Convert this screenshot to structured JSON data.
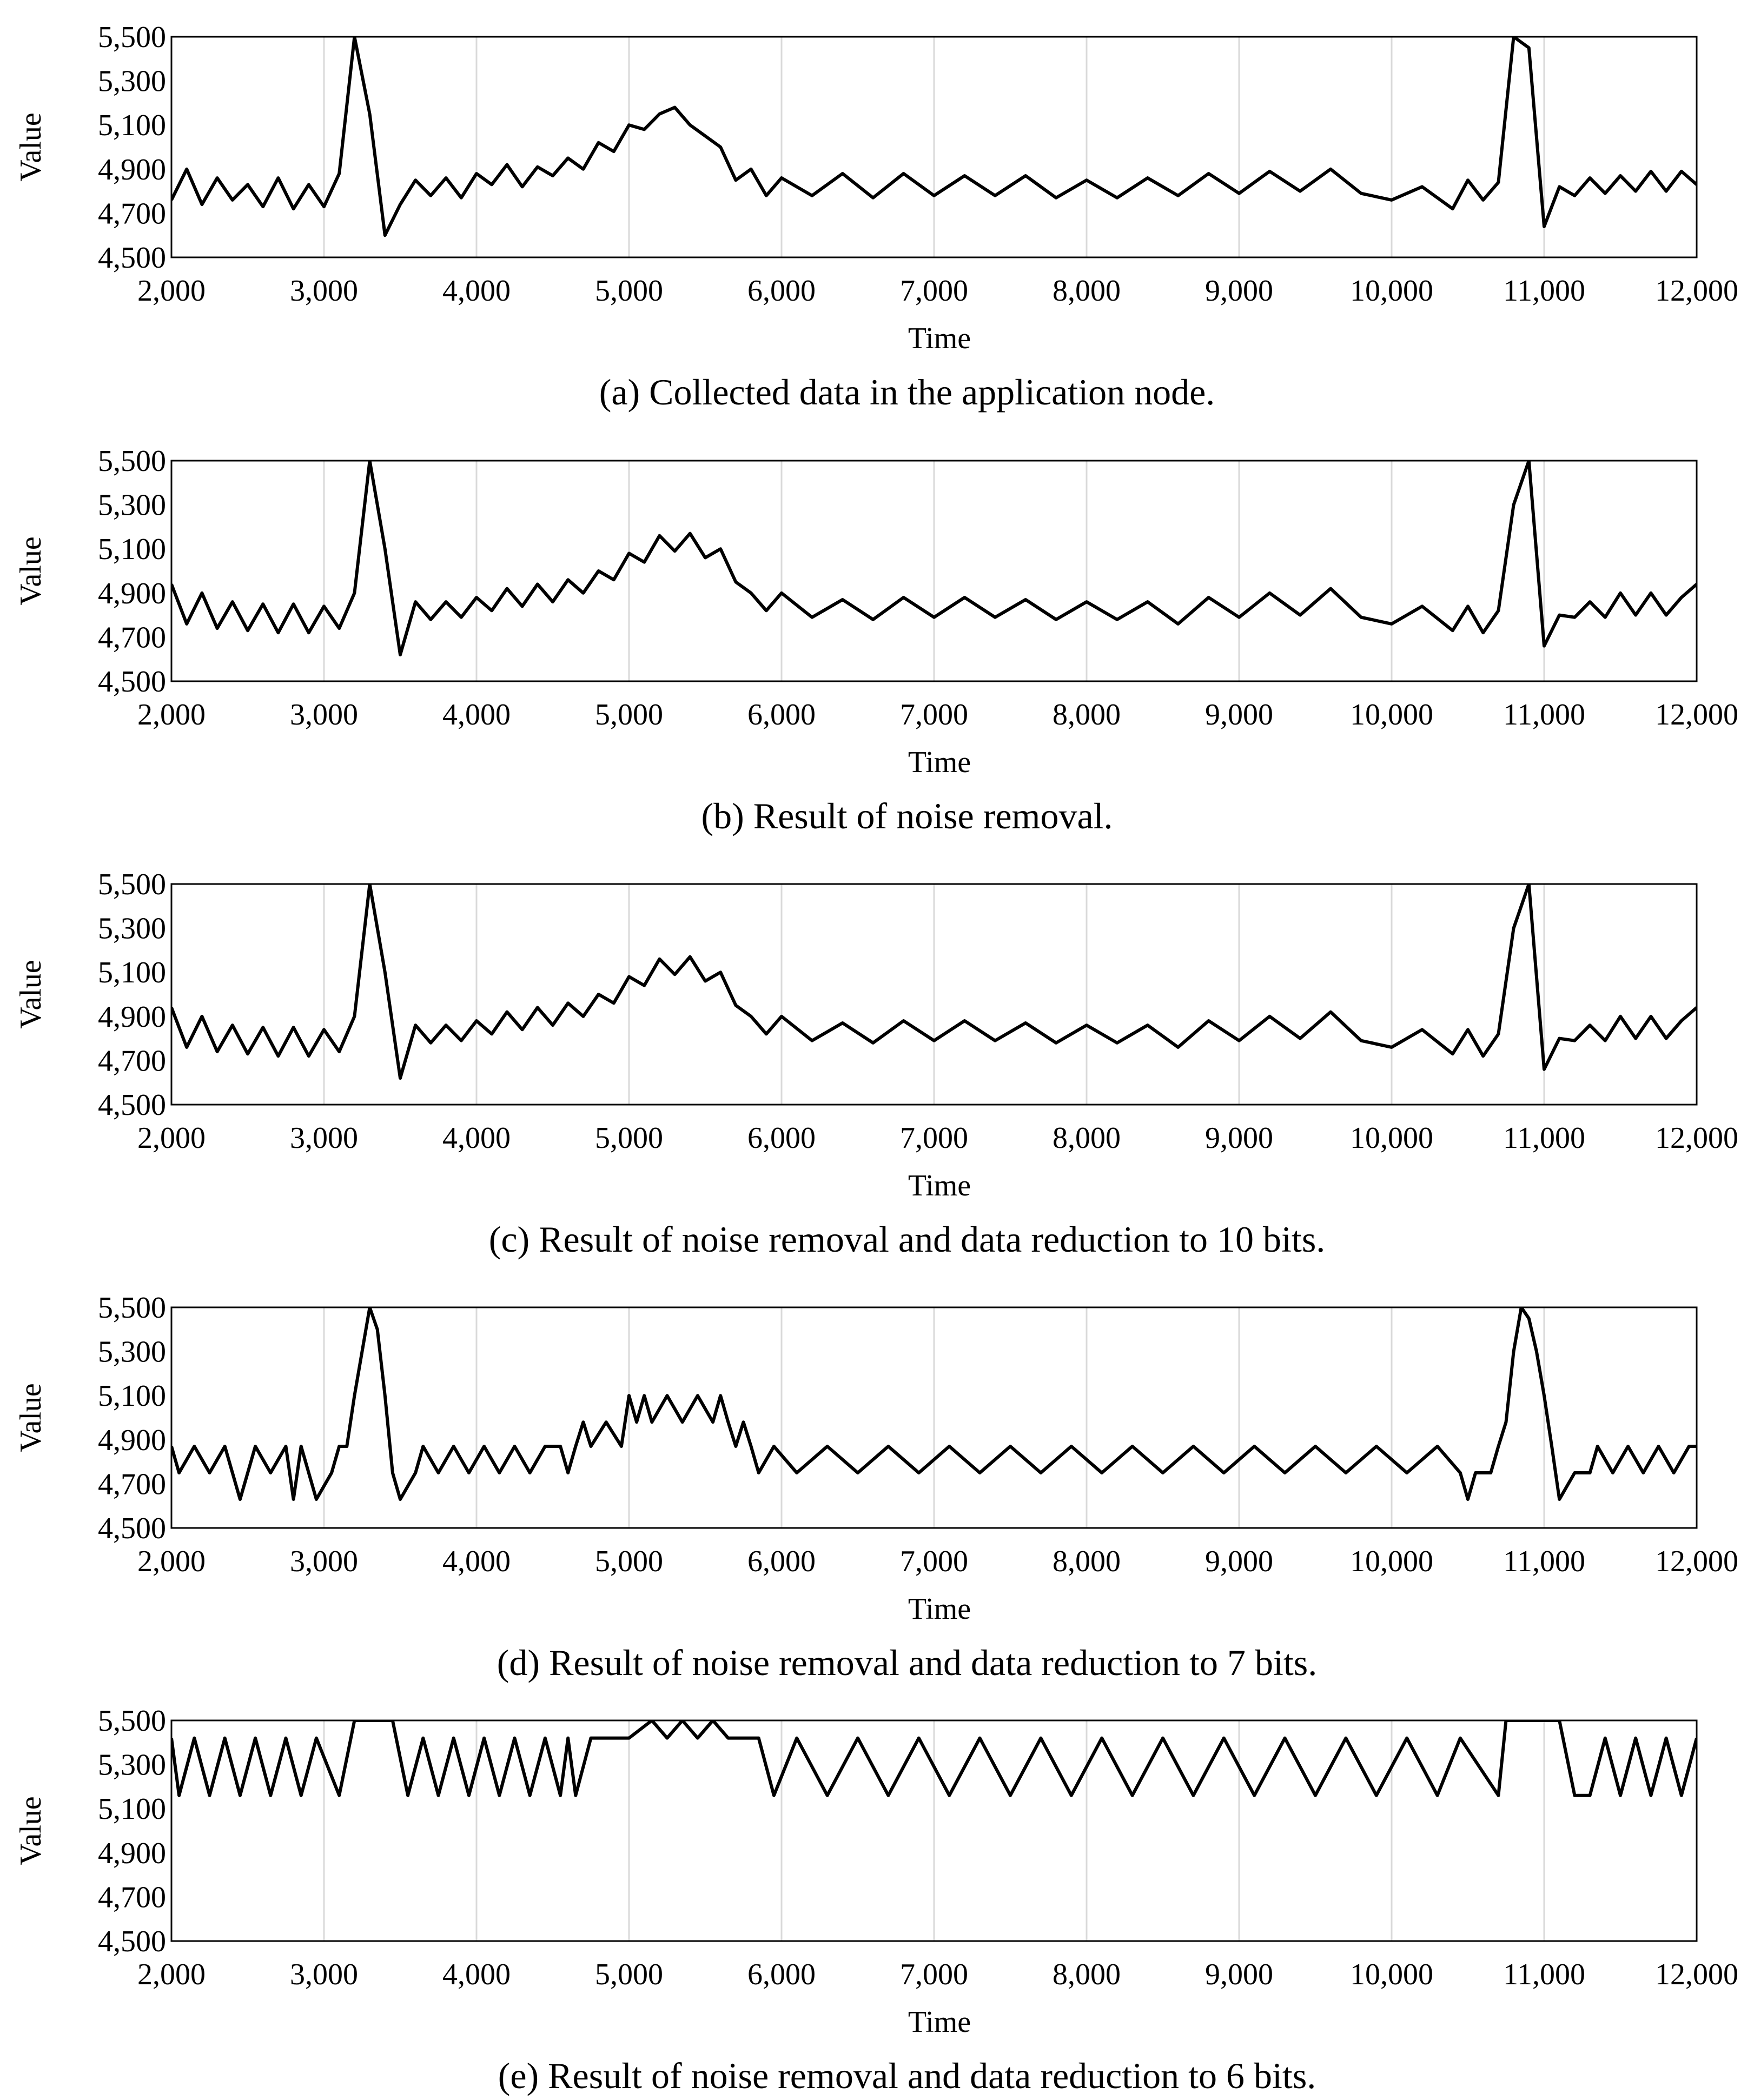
{
  "figure": {
    "x_axis_label": "Time",
    "y_axis_label": "Value"
  },
  "style": {
    "line_color": "#000000",
    "grid_color": "#d9d9d9",
    "axis_color": "#000000"
  },
  "chart_data": [
    {
      "type": "line",
      "caption": "(a) Collected data in the application node.",
      "xlabel": "Time",
      "ylabel": "Value",
      "xlim": [
        2000,
        12000
      ],
      "ylim": [
        4500,
        5500
      ],
      "xticks": [
        "2,000",
        "3,000",
        "4,000",
        "5,000",
        "6,000",
        "7,000",
        "8,000",
        "9,000",
        "10,000",
        "11,000",
        "12,000"
      ],
      "yticks": [
        "4,500",
        "4,700",
        "4,900",
        "5,100",
        "5,300",
        "5,500"
      ],
      "grid": "vertical",
      "series": [
        {
          "x": [
            2000,
            2100,
            2200,
            2300,
            2400,
            2500,
            2600,
            2700,
            2800,
            2900,
            3000,
            3100,
            3200,
            3300,
            3400,
            3500,
            3600,
            3700,
            3800,
            3900,
            4000,
            4100,
            4200,
            4300,
            4400,
            4500,
            4600,
            4700,
            4800,
            4900,
            5000,
            5100,
            5200,
            5300,
            5400,
            5500,
            5600,
            5700,
            5800,
            5900,
            6000,
            6200,
            6400,
            6600,
            6800,
            7000,
            7200,
            7400,
            7600,
            7800,
            8000,
            8200,
            8400,
            8600,
            8800,
            9000,
            9200,
            9400,
            9600,
            9800,
            10000,
            10200,
            10400,
            10500,
            10600,
            10700,
            10800,
            10900,
            11000,
            11100,
            11200,
            11300,
            11400,
            11500,
            11600,
            11700,
            11800,
            11900,
            12000
          ],
          "y": [
            4760,
            4900,
            4740,
            4860,
            4760,
            4830,
            4730,
            4860,
            4720,
            4830,
            4730,
            4880,
            5500,
            5150,
            4600,
            4740,
            4850,
            4780,
            4860,
            4770,
            4880,
            4830,
            4920,
            4820,
            4910,
            4870,
            4950,
            4900,
            5020,
            4980,
            5100,
            5080,
            5150,
            5180,
            5100,
            5050,
            5000,
            4850,
            4900,
            4780,
            4860,
            4780,
            4880,
            4770,
            4880,
            4780,
            4870,
            4780,
            4870,
            4770,
            4850,
            4770,
            4860,
            4780,
            4880,
            4790,
            4890,
            4800,
            4900,
            4790,
            4760,
            4820,
            4720,
            4850,
            4760,
            4840,
            5500,
            5450,
            4640,
            4820,
            4780,
            4860,
            4790,
            4870,
            4800,
            4890,
            4800,
            4890,
            4830
          ]
        }
      ]
    },
    {
      "type": "line",
      "caption": "(b) Result of noise removal.",
      "xlabel": "Time",
      "ylabel": "Value",
      "xlim": [
        2000,
        12000
      ],
      "ylim": [
        4500,
        5500
      ],
      "xticks": [
        "2,000",
        "3,000",
        "4,000",
        "5,000",
        "6,000",
        "7,000",
        "8,000",
        "9,000",
        "10,000",
        "11,000",
        "12,000"
      ],
      "yticks": [
        "4,500",
        "4,700",
        "4,900",
        "5,100",
        "5,300",
        "5,500"
      ],
      "grid": "vertical",
      "series": [
        {
          "x": [
            2000,
            2100,
            2200,
            2300,
            2400,
            2500,
            2600,
            2700,
            2800,
            2900,
            3000,
            3100,
            3200,
            3300,
            3400,
            3500,
            3600,
            3700,
            3800,
            3900,
            4000,
            4100,
            4200,
            4300,
            4400,
            4500,
            4600,
            4700,
            4800,
            4900,
            5000,
            5100,
            5200,
            5300,
            5400,
            5500,
            5600,
            5700,
            5800,
            5900,
            6000,
            6200,
            6400,
            6600,
            6800,
            7000,
            7200,
            7400,
            7600,
            7800,
            8000,
            8200,
            8400,
            8600,
            8800,
            9000,
            9200,
            9400,
            9600,
            9800,
            10000,
            10200,
            10400,
            10500,
            10600,
            10700,
            10800,
            10900,
            11000,
            11100,
            11200,
            11300,
            11400,
            11500,
            11600,
            11700,
            11800,
            11900,
            12000
          ],
          "y": [
            4940,
            4760,
            4900,
            4740,
            4860,
            4730,
            4850,
            4720,
            4850,
            4720,
            4840,
            4740,
            4900,
            5500,
            5100,
            4620,
            4860,
            4780,
            4860,
            4790,
            4880,
            4820,
            4920,
            4840,
            4940,
            4860,
            4960,
            4900,
            5000,
            4960,
            5080,
            5040,
            5160,
            5090,
            5170,
            5060,
            5100,
            4950,
            4900,
            4820,
            4900,
            4790,
            4870,
            4780,
            4880,
            4790,
            4880,
            4790,
            4870,
            4780,
            4860,
            4780,
            4860,
            4760,
            4880,
            4790,
            4900,
            4800,
            4920,
            4790,
            4760,
            4840,
            4730,
            4840,
            4720,
            4820,
            5300,
            5500,
            4660,
            4800,
            4790,
            4860,
            4790,
            4900,
            4800,
            4900,
            4800,
            4880,
            4940
          ]
        }
      ]
    },
    {
      "type": "line",
      "caption": "(c) Result of noise removal and data reduction to 10 bits.",
      "xlabel": "Time",
      "ylabel": "Value",
      "xlim": [
        2000,
        12000
      ],
      "ylim": [
        4500,
        5500
      ],
      "xticks": [
        "2,000",
        "3,000",
        "4,000",
        "5,000",
        "6,000",
        "7,000",
        "8,000",
        "9,000",
        "10,000",
        "11,000",
        "12,000"
      ],
      "yticks": [
        "4,500",
        "4,700",
        "4,900",
        "5,100",
        "5,300",
        "5,500"
      ],
      "grid": "vertical",
      "series": [
        {
          "x": [
            2000,
            2100,
            2200,
            2300,
            2400,
            2500,
            2600,
            2700,
            2800,
            2900,
            3000,
            3100,
            3200,
            3300,
            3400,
            3500,
            3600,
            3700,
            3800,
            3900,
            4000,
            4100,
            4200,
            4300,
            4400,
            4500,
            4600,
            4700,
            4800,
            4900,
            5000,
            5100,
            5200,
            5300,
            5400,
            5500,
            5600,
            5700,
            5800,
            5900,
            6000,
            6200,
            6400,
            6600,
            6800,
            7000,
            7200,
            7400,
            7600,
            7800,
            8000,
            8200,
            8400,
            8600,
            8800,
            9000,
            9200,
            9400,
            9600,
            9800,
            10000,
            10200,
            10400,
            10500,
            10600,
            10700,
            10800,
            10900,
            11000,
            11100,
            11200,
            11300,
            11400,
            11500,
            11600,
            11700,
            11800,
            11900,
            12000
          ],
          "y": [
            4940,
            4760,
            4900,
            4740,
            4860,
            4730,
            4850,
            4720,
            4850,
            4720,
            4840,
            4740,
            4900,
            5500,
            5100,
            4620,
            4860,
            4780,
            4860,
            4790,
            4880,
            4820,
            4920,
            4840,
            4940,
            4860,
            4960,
            4900,
            5000,
            4960,
            5080,
            5040,
            5160,
            5090,
            5170,
            5060,
            5100,
            4950,
            4900,
            4820,
            4900,
            4790,
            4870,
            4780,
            4880,
            4790,
            4880,
            4790,
            4870,
            4780,
            4860,
            4780,
            4860,
            4760,
            4880,
            4790,
            4900,
            4800,
            4920,
            4790,
            4760,
            4840,
            4730,
            4840,
            4720,
            4820,
            5300,
            5500,
            4660,
            4800,
            4790,
            4860,
            4790,
            4900,
            4800,
            4900,
            4800,
            4880,
            4940
          ]
        }
      ]
    },
    {
      "type": "line",
      "caption": "(d) Result of noise removal and data reduction to 7 bits.",
      "xlabel": "Time",
      "ylabel": "Value",
      "xlim": [
        2000,
        12000
      ],
      "ylim": [
        4500,
        5500
      ],
      "xticks": [
        "2,000",
        "3,000",
        "4,000",
        "5,000",
        "6,000",
        "7,000",
        "8,000",
        "9,000",
        "10,000",
        "11,000",
        "12,000"
      ],
      "yticks": [
        "4,500",
        "4,700",
        "4,900",
        "5,100",
        "5,300",
        "5,500"
      ],
      "grid": "vertical",
      "series": [
        {
          "x": [
            2000,
            2050,
            2150,
            2250,
            2350,
            2400,
            2450,
            2550,
            2650,
            2750,
            2800,
            2850,
            2950,
            3050,
            3100,
            3150,
            3200,
            3250,
            3300,
            3350,
            3400,
            3450,
            3500,
            3600,
            3650,
            3750,
            3850,
            3950,
            4050,
            4150,
            4250,
            4350,
            4450,
            4550,
            4600,
            4650,
            4700,
            4750,
            4850,
            4950,
            5000,
            5050,
            5100,
            5150,
            5250,
            5350,
            5450,
            5550,
            5600,
            5650,
            5700,
            5750,
            5800,
            5850,
            5950,
            6100,
            6300,
            6500,
            6700,
            6900,
            7100,
            7300,
            7500,
            7700,
            7900,
            8100,
            8300,
            8500,
            8700,
            8900,
            9100,
            9300,
            9500,
            9700,
            9900,
            10100,
            10300,
            10450,
            10500,
            10550,
            10650,
            10700,
            10750,
            10800,
            10850,
            10900,
            10950,
            11000,
            11050,
            11100,
            11200,
            11300,
            11350,
            11450,
            11550,
            11650,
            11750,
            11850,
            11950,
            12000
          ],
          "y": [
            4870,
            4750,
            4870,
            4750,
            4870,
            4750,
            4630,
            4870,
            4750,
            4870,
            4630,
            4870,
            4630,
            4750,
            4870,
            4870,
            5100,
            5300,
            5500,
            5400,
            5100,
            4750,
            4630,
            4750,
            4870,
            4750,
            4870,
            4750,
            4870,
            4750,
            4870,
            4750,
            4870,
            4870,
            4750,
            4870,
            4980,
            4870,
            4980,
            4870,
            5100,
            4980,
            5100,
            4980,
            5100,
            4980,
            5100,
            4980,
            5100,
            4980,
            4870,
            4980,
            4870,
            4750,
            4870,
            4750,
            4870,
            4750,
            4870,
            4750,
            4870,
            4750,
            4870,
            4750,
            4870,
            4750,
            4870,
            4750,
            4870,
            4750,
            4870,
            4750,
            4870,
            4750,
            4870,
            4750,
            4870,
            4750,
            4630,
            4750,
            4750,
            4870,
            4980,
            5300,
            5500,
            5450,
            5300,
            5100,
            4870,
            4630,
            4750,
            4750,
            4870,
            4750,
            4870,
            4750,
            4870,
            4750,
            4870,
            4870
          ]
        }
      ]
    },
    {
      "type": "line",
      "caption": "(e) Result of noise removal and data reduction to 6 bits.",
      "xlabel": "Time",
      "ylabel": "Value",
      "xlim": [
        2000,
        12000
      ],
      "ylim": [
        4500,
        5500
      ],
      "xticks": [
        "2,000",
        "3,000",
        "4,000",
        "5,000",
        "6,000",
        "7,000",
        "8,000",
        "9,000",
        "10,000",
        "11,000",
        "12,000"
      ],
      "yticks": [
        "4,500",
        "4,700",
        "4,900",
        "5,100",
        "5,300",
        "5,500"
      ],
      "grid": "vertical",
      "series": [
        {
          "x": [
            2000,
            2050,
            2150,
            2250,
            2350,
            2450,
            2550,
            2650,
            2750,
            2850,
            2950,
            3100,
            3200,
            3450,
            3550,
            3650,
            3750,
            3850,
            3950,
            4050,
            4150,
            4250,
            4350,
            4450,
            4550,
            4600,
            4650,
            4750,
            5000,
            5150,
            5250,
            5350,
            5450,
            5550,
            5650,
            5850,
            5950,
            6100,
            6300,
            6500,
            6700,
            6900,
            7100,
            7300,
            7500,
            7700,
            7900,
            8100,
            8300,
            8500,
            8700,
            8900,
            9100,
            9300,
            9500,
            9700,
            9900,
            10100,
            10300,
            10450,
            10700,
            10750,
            11100,
            11200,
            11300,
            11400,
            11500,
            11600,
            11700,
            11800,
            11900,
            12000
          ],
          "y": [
            5420,
            5160,
            5420,
            5160,
            5420,
            5160,
            5420,
            5160,
            5420,
            5160,
            5420,
            5160,
            5500,
            5500,
            5160,
            5420,
            5160,
            5420,
            5160,
            5420,
            5160,
            5420,
            5160,
            5420,
            5160,
            5420,
            5160,
            5420,
            5420,
            5500,
            5420,
            5500,
            5420,
            5500,
            5420,
            5420,
            5160,
            5420,
            5160,
            5420,
            5160,
            5420,
            5160,
            5420,
            5160,
            5420,
            5160,
            5420,
            5160,
            5420,
            5160,
            5420,
            5160,
            5420,
            5160,
            5420,
            5160,
            5420,
            5160,
            5420,
            5160,
            5500,
            5500,
            5160,
            5160,
            5420,
            5160,
            5420,
            5160,
            5420,
            5160,
            5420
          ]
        }
      ]
    }
  ]
}
